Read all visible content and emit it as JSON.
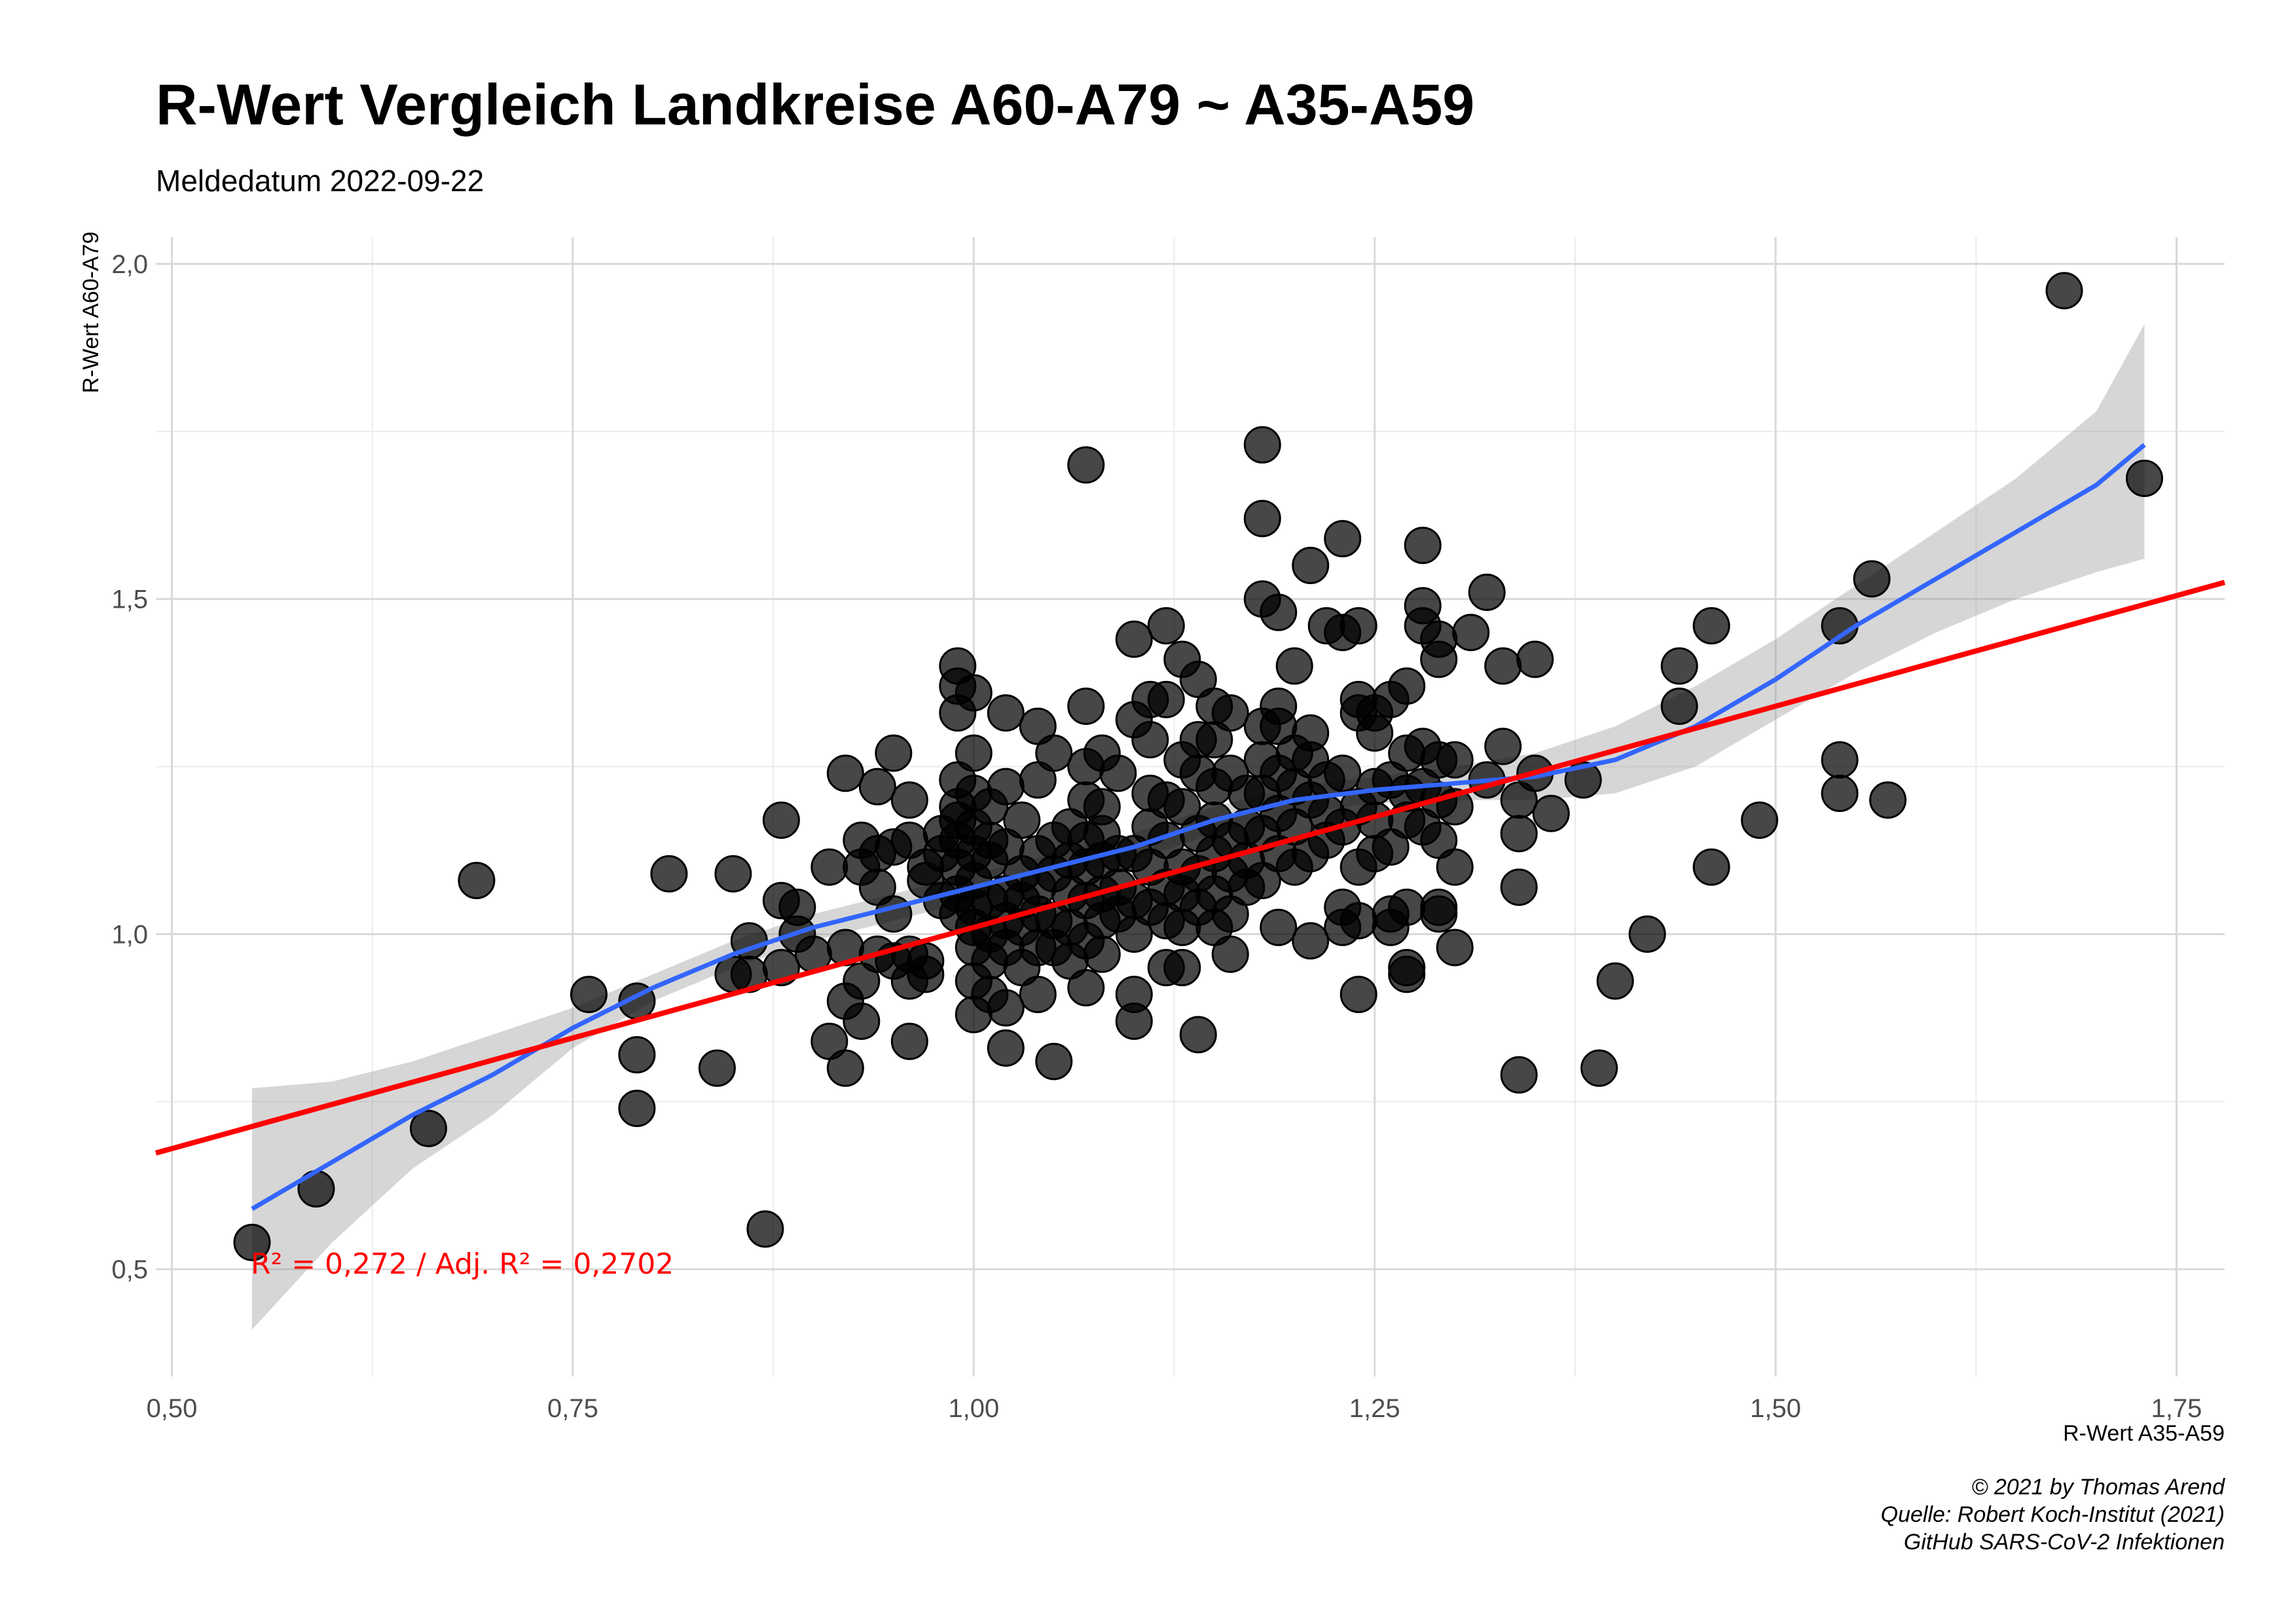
{
  "chart_data": {
    "type": "scatter",
    "title": "R-Wert Vergleich Landkreise A60-A79 ~ A35-A59",
    "subtitle": "Meldedatum 2022-09-22",
    "xlabel": "R-Wert A35-A59",
    "ylabel": "R-Wert A60-A79",
    "xlim": [
      0.49,
      1.78
    ],
    "ylim": [
      0.34,
      2.04
    ],
    "x_ticks": [
      0.5,
      0.75,
      1.0,
      1.25,
      1.5,
      1.75
    ],
    "x_tick_labels": [
      "0,50",
      "0,75",
      "1,00",
      "1,25",
      "1,50",
      "1,75"
    ],
    "y_ticks": [
      0.5,
      1.0,
      1.5,
      2.0
    ],
    "y_tick_labels": [
      "0,5",
      "1,0",
      "1,5",
      "2,0"
    ],
    "grid": true,
    "annotation": "R² = 0,272 / Adj. R² =  0,2702",
    "caption_lines": [
      "© 2021 by Thomas Arend",
      "Quelle: Robert Koch-Institut (2021)",
      "GitHub SARS-CoV-2 Infektionen"
    ],
    "colors": {
      "points": "#000000",
      "regression": "#ff0000",
      "smooth": "#3366ff",
      "band": "#999999"
    },
    "linear_fit": {
      "intercept": 0.35,
      "slope": 0.66
    },
    "smooth": [
      [
        0.55,
        0.59
      ],
      [
        0.6,
        0.66
      ],
      [
        0.65,
        0.73
      ],
      [
        0.7,
        0.79
      ],
      [
        0.75,
        0.86
      ],
      [
        0.8,
        0.92
      ],
      [
        0.85,
        0.97
      ],
      [
        0.9,
        1.01
      ],
      [
        0.95,
        1.04
      ],
      [
        1.0,
        1.07
      ],
      [
        1.05,
        1.1
      ],
      [
        1.1,
        1.13
      ],
      [
        1.15,
        1.17
      ],
      [
        1.2,
        1.2
      ],
      [
        1.25,
        1.215
      ],
      [
        1.3,
        1.225
      ],
      [
        1.35,
        1.235
      ],
      [
        1.4,
        1.26
      ],
      [
        1.45,
        1.31
      ],
      [
        1.5,
        1.38
      ],
      [
        1.55,
        1.46
      ],
      [
        1.6,
        1.53
      ],
      [
        1.65,
        1.6
      ],
      [
        1.7,
        1.67
      ],
      [
        1.73,
        1.73
      ]
    ],
    "band_upper": [
      [
        0.55,
        0.77
      ],
      [
        0.6,
        0.78
      ],
      [
        0.65,
        0.81
      ],
      [
        0.7,
        0.85
      ],
      [
        0.75,
        0.89
      ],
      [
        0.8,
        0.94
      ],
      [
        0.85,
        0.99
      ],
      [
        0.9,
        1.03
      ],
      [
        0.95,
        1.06
      ],
      [
        1.0,
        1.09
      ],
      [
        1.05,
        1.12
      ],
      [
        1.1,
        1.15
      ],
      [
        1.15,
        1.19
      ],
      [
        1.2,
        1.22
      ],
      [
        1.25,
        1.235
      ],
      [
        1.3,
        1.25
      ],
      [
        1.35,
        1.27
      ],
      [
        1.4,
        1.31
      ],
      [
        1.45,
        1.37
      ],
      [
        1.5,
        1.44
      ],
      [
        1.55,
        1.52
      ],
      [
        1.6,
        1.6
      ],
      [
        1.65,
        1.68
      ],
      [
        1.7,
        1.78
      ],
      [
        1.73,
        1.91
      ]
    ],
    "band_lower": [
      [
        0.55,
        0.41
      ],
      [
        0.6,
        0.54
      ],
      [
        0.65,
        0.65
      ],
      [
        0.7,
        0.73
      ],
      [
        0.75,
        0.83
      ],
      [
        0.8,
        0.9
      ],
      [
        0.85,
        0.95
      ],
      [
        0.9,
        0.99
      ],
      [
        0.95,
        1.02
      ],
      [
        1.0,
        1.05
      ],
      [
        1.05,
        1.08
      ],
      [
        1.1,
        1.11
      ],
      [
        1.15,
        1.15
      ],
      [
        1.2,
        1.18
      ],
      [
        1.25,
        1.195
      ],
      [
        1.3,
        1.2
      ],
      [
        1.35,
        1.2
      ],
      [
        1.4,
        1.21
      ],
      [
        1.45,
        1.25
      ],
      [
        1.5,
        1.32
      ],
      [
        1.55,
        1.39
      ],
      [
        1.6,
        1.45
      ],
      [
        1.65,
        1.5
      ],
      [
        1.7,
        1.54
      ],
      [
        1.73,
        1.56
      ]
    ],
    "points": [
      [
        0.55,
        0.54
      ],
      [
        0.59,
        0.62
      ],
      [
        0.66,
        0.71
      ],
      [
        0.69,
        1.08
      ],
      [
        0.76,
        0.91
      ],
      [
        0.79,
        0.9
      ],
      [
        0.79,
        0.82
      ],
      [
        0.79,
        0.74
      ],
      [
        0.81,
        1.09
      ],
      [
        0.84,
        0.8
      ],
      [
        0.85,
        1.09
      ],
      [
        0.85,
        0.94
      ],
      [
        0.86,
        0.99
      ],
      [
        0.86,
        0.94
      ],
      [
        0.87,
        0.56
      ],
      [
        0.88,
        1.17
      ],
      [
        0.88,
        1.05
      ],
      [
        0.88,
        0.95
      ],
      [
        0.89,
        1.04
      ],
      [
        0.89,
        1.0
      ],
      [
        0.9,
        0.97
      ],
      [
        0.91,
        1.1
      ],
      [
        0.91,
        0.84
      ],
      [
        0.92,
        1.24
      ],
      [
        0.92,
        0.98
      ],
      [
        0.92,
        0.9
      ],
      [
        0.92,
        0.8
      ],
      [
        0.93,
        1.14
      ],
      [
        0.93,
        1.1
      ],
      [
        0.93,
        0.93
      ],
      [
        0.93,
        0.87
      ],
      [
        0.94,
        1.22
      ],
      [
        0.94,
        1.12
      ],
      [
        0.94,
        1.07
      ],
      [
        0.94,
        0.97
      ],
      [
        0.95,
        1.27
      ],
      [
        0.95,
        1.13
      ],
      [
        0.95,
        1.03
      ],
      [
        0.95,
        0.96
      ],
      [
        0.96,
        1.2
      ],
      [
        0.96,
        1.14
      ],
      [
        0.96,
        0.97
      ],
      [
        0.96,
        0.93
      ],
      [
        0.96,
        0.84
      ],
      [
        0.97,
        1.1
      ],
      [
        0.97,
        1.08
      ],
      [
        0.97,
        0.96
      ],
      [
        0.97,
        0.94
      ],
      [
        0.98,
        1.15
      ],
      [
        0.98,
        1.12
      ],
      [
        0.98,
        1.05
      ],
      [
        0.99,
        1.4
      ],
      [
        0.99,
        1.37
      ],
      [
        0.99,
        1.33
      ],
      [
        0.99,
        1.23
      ],
      [
        0.99,
        1.19
      ],
      [
        0.99,
        1.17
      ],
      [
        0.99,
        1.14
      ],
      [
        0.99,
        1.1
      ],
      [
        0.99,
        1.06
      ],
      [
        0.99,
        1.03
      ],
      [
        1.0,
        1.36
      ],
      [
        1.0,
        1.27
      ],
      [
        1.0,
        1.21
      ],
      [
        1.0,
        1.16
      ],
      [
        1.0,
        1.12
      ],
      [
        1.0,
        1.08
      ],
      [
        1.0,
        1.04
      ],
      [
        1.0,
        1.01
      ],
      [
        1.0,
        0.98
      ],
      [
        1.0,
        0.93
      ],
      [
        1.0,
        0.88
      ],
      [
        1.01,
        1.19
      ],
      [
        1.01,
        1.14
      ],
      [
        1.01,
        1.11
      ],
      [
        1.01,
        1.05
      ],
      [
        1.01,
        1.0
      ],
      [
        1.01,
        0.96
      ],
      [
        1.01,
        0.91
      ],
      [
        1.02,
        1.33
      ],
      [
        1.02,
        1.22
      ],
      [
        1.02,
        1.13
      ],
      [
        1.02,
        1.06
      ],
      [
        1.02,
        1.02
      ],
      [
        1.02,
        0.98
      ],
      [
        1.02,
        0.89
      ],
      [
        1.02,
        0.83
      ],
      [
        1.03,
        1.17
      ],
      [
        1.03,
        1.09
      ],
      [
        1.03,
        1.05
      ],
      [
        1.03,
        1.01
      ],
      [
        1.03,
        0.95
      ],
      [
        1.04,
        1.31
      ],
      [
        1.04,
        1.23
      ],
      [
        1.04,
        1.12
      ],
      [
        1.04,
        1.07
      ],
      [
        1.04,
        1.03
      ],
      [
        1.04,
        0.98
      ],
      [
        1.04,
        0.91
      ],
      [
        1.05,
        1.27
      ],
      [
        1.05,
        1.14
      ],
      [
        1.05,
        1.09
      ],
      [
        1.05,
        1.02
      ],
      [
        1.05,
        0.98
      ],
      [
        1.05,
        0.81
      ],
      [
        1.06,
        1.16
      ],
      [
        1.06,
        1.11
      ],
      [
        1.06,
        1.06
      ],
      [
        1.06,
        1.01
      ],
      [
        1.06,
        0.96
      ],
      [
        1.07,
        1.7
      ],
      [
        1.07,
        1.34
      ],
      [
        1.07,
        1.25
      ],
      [
        1.07,
        1.2
      ],
      [
        1.07,
        1.14
      ],
      [
        1.07,
        1.1
      ],
      [
        1.07,
        1.05
      ],
      [
        1.07,
        0.99
      ],
      [
        1.07,
        0.92
      ],
      [
        1.08,
        1.27
      ],
      [
        1.08,
        1.19
      ],
      [
        1.08,
        1.15
      ],
      [
        1.08,
        1.11
      ],
      [
        1.08,
        1.06
      ],
      [
        1.08,
        1.02
      ],
      [
        1.08,
        0.97
      ],
      [
        1.09,
        1.24
      ],
      [
        1.09,
        1.12
      ],
      [
        1.09,
        1.07
      ],
      [
        1.09,
        1.03
      ],
      [
        1.1,
        1.44
      ],
      [
        1.1,
        1.32
      ],
      [
        1.1,
        1.12
      ],
      [
        1.1,
        1.05
      ],
      [
        1.1,
        1.0
      ],
      [
        1.1,
        0.91
      ],
      [
        1.1,
        0.87
      ],
      [
        1.11,
        1.35
      ],
      [
        1.11,
        1.29
      ],
      [
        1.11,
        1.21
      ],
      [
        1.11,
        1.16
      ],
      [
        1.11,
        1.1
      ],
      [
        1.11,
        1.04
      ],
      [
        1.12,
        1.46
      ],
      [
        1.12,
        1.35
      ],
      [
        1.12,
        1.2
      ],
      [
        1.12,
        1.14
      ],
      [
        1.12,
        1.07
      ],
      [
        1.12,
        1.02
      ],
      [
        1.12,
        0.95
      ],
      [
        1.13,
        1.41
      ],
      [
        1.13,
        1.26
      ],
      [
        1.13,
        1.19
      ],
      [
        1.13,
        1.1
      ],
      [
        1.13,
        1.06
      ],
      [
        1.13,
        1.01
      ],
      [
        1.13,
        0.95
      ],
      [
        1.14,
        1.38
      ],
      [
        1.14,
        1.29
      ],
      [
        1.14,
        1.24
      ],
      [
        1.14,
        1.15
      ],
      [
        1.14,
        1.09
      ],
      [
        1.14,
        1.04
      ],
      [
        1.14,
        0.85
      ],
      [
        1.15,
        1.34
      ],
      [
        1.15,
        1.29
      ],
      [
        1.15,
        1.22
      ],
      [
        1.15,
        1.17
      ],
      [
        1.15,
        1.12
      ],
      [
        1.15,
        1.06
      ],
      [
        1.15,
        1.01
      ],
      [
        1.16,
        1.33
      ],
      [
        1.16,
        1.24
      ],
      [
        1.16,
        1.14
      ],
      [
        1.16,
        1.09
      ],
      [
        1.16,
        1.03
      ],
      [
        1.16,
        0.97
      ],
      [
        1.17,
        1.21
      ],
      [
        1.17,
        1.16
      ],
      [
        1.17,
        1.11
      ],
      [
        1.17,
        1.07
      ],
      [
        1.18,
        1.73
      ],
      [
        1.18,
        1.62
      ],
      [
        1.18,
        1.5
      ],
      [
        1.18,
        1.31
      ],
      [
        1.18,
        1.26
      ],
      [
        1.18,
        1.21
      ],
      [
        1.18,
        1.15
      ],
      [
        1.18,
        1.08
      ],
      [
        1.19,
        1.48
      ],
      [
        1.19,
        1.34
      ],
      [
        1.19,
        1.31
      ],
      [
        1.19,
        1.24
      ],
      [
        1.19,
        1.18
      ],
      [
        1.19,
        1.12
      ],
      [
        1.19,
        1.01
      ],
      [
        1.2,
        1.4
      ],
      [
        1.2,
        1.27
      ],
      [
        1.2,
        1.22
      ],
      [
        1.2,
        1.16
      ],
      [
        1.2,
        1.1
      ],
      [
        1.21,
        1.55
      ],
      [
        1.21,
        1.3
      ],
      [
        1.21,
        1.26
      ],
      [
        1.21,
        1.2
      ],
      [
        1.21,
        1.12
      ],
      [
        1.21,
        0.99
      ],
      [
        1.22,
        1.46
      ],
      [
        1.22,
        1.23
      ],
      [
        1.22,
        1.18
      ],
      [
        1.22,
        1.14
      ],
      [
        1.23,
        1.59
      ],
      [
        1.23,
        1.45
      ],
      [
        1.23,
        1.24
      ],
      [
        1.23,
        1.16
      ],
      [
        1.23,
        1.04
      ],
      [
        1.23,
        1.01
      ],
      [
        1.24,
        1.46
      ],
      [
        1.24,
        1.35
      ],
      [
        1.24,
        1.33
      ],
      [
        1.24,
        1.19
      ],
      [
        1.24,
        1.1
      ],
      [
        1.24,
        1.02
      ],
      [
        1.24,
        0.91
      ],
      [
        1.25,
        1.33
      ],
      [
        1.25,
        1.3
      ],
      [
        1.25,
        1.22
      ],
      [
        1.25,
        1.17
      ],
      [
        1.25,
        1.12
      ],
      [
        1.26,
        1.35
      ],
      [
        1.26,
        1.23
      ],
      [
        1.26,
        1.13
      ],
      [
        1.26,
        1.03
      ],
      [
        1.26,
        1.01
      ],
      [
        1.27,
        1.37
      ],
      [
        1.27,
        1.27
      ],
      [
        1.27,
        1.21
      ],
      [
        1.27,
        1.17
      ],
      [
        1.27,
        1.04
      ],
      [
        1.27,
        0.95
      ],
      [
        1.27,
        0.94
      ],
      [
        1.28,
        1.58
      ],
      [
        1.28,
        1.49
      ],
      [
        1.28,
        1.46
      ],
      [
        1.28,
        1.28
      ],
      [
        1.28,
        1.22
      ],
      [
        1.28,
        1.16
      ],
      [
        1.29,
        1.44
      ],
      [
        1.29,
        1.41
      ],
      [
        1.29,
        1.26
      ],
      [
        1.29,
        1.2
      ],
      [
        1.29,
        1.14
      ],
      [
        1.29,
        1.04
      ],
      [
        1.29,
        1.03
      ],
      [
        1.3,
        1.26
      ],
      [
        1.3,
        1.19
      ],
      [
        1.3,
        1.1
      ],
      [
        1.3,
        0.98
      ],
      [
        1.31,
        1.45
      ],
      [
        1.32,
        1.51
      ],
      [
        1.32,
        1.23
      ],
      [
        1.33,
        1.4
      ],
      [
        1.33,
        1.28
      ],
      [
        1.34,
        1.2
      ],
      [
        1.34,
        1.15
      ],
      [
        1.34,
        1.07
      ],
      [
        1.34,
        0.79
      ],
      [
        1.35,
        1.41
      ],
      [
        1.35,
        1.24
      ],
      [
        1.36,
        1.18
      ],
      [
        1.38,
        1.23
      ],
      [
        1.39,
        0.8
      ],
      [
        1.4,
        0.93
      ],
      [
        1.42,
        1.0
      ],
      [
        1.44,
        1.4
      ],
      [
        1.44,
        1.34
      ],
      [
        1.46,
        1.46
      ],
      [
        1.46,
        1.1
      ],
      [
        1.49,
        1.17
      ],
      [
        1.54,
        1.46
      ],
      [
        1.54,
        1.26
      ],
      [
        1.54,
        1.21
      ],
      [
        1.56,
        1.53
      ],
      [
        1.57,
        1.2
      ],
      [
        1.68,
        1.96
      ],
      [
        1.73,
        1.68
      ]
    ]
  }
}
